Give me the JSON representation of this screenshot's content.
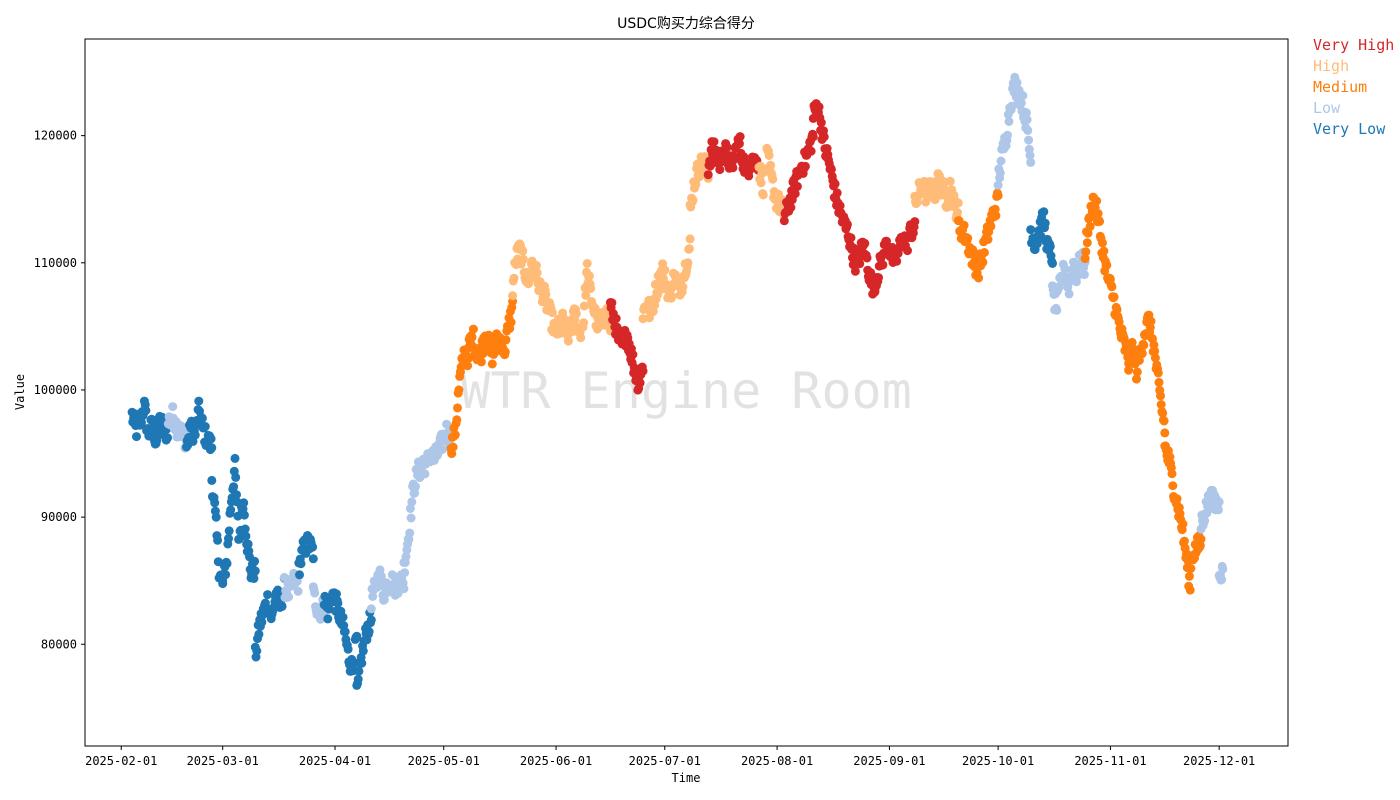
{
  "chart_data": {
    "type": "scatter",
    "title": "USDC购买力综合得分",
    "xlabel": "Time",
    "ylabel": "Value",
    "watermark": "WTR Engine Room",
    "xlim": [
      "2025-01-22",
      "2025-12-20"
    ],
    "ylim": [
      72000,
      127600
    ],
    "x_ticks": [
      "2025-02-01",
      "2025-03-01",
      "2025-04-01",
      "2025-05-01",
      "2025-06-01",
      "2025-07-01",
      "2025-08-01",
      "2025-09-01",
      "2025-10-01",
      "2025-11-01",
      "2025-12-01"
    ],
    "y_ticks": [
      80000,
      90000,
      100000,
      110000,
      120000
    ],
    "y_tick_labels": [
      "80000",
      "90000",
      "100000",
      "110000",
      "120000"
    ],
    "grid": false,
    "legend_position": "outside top-right",
    "categories": [
      {
        "name": "Very High",
        "color": "#d62728"
      },
      {
        "name": "High",
        "color": "#ffbb78"
      },
      {
        "name": "Medium",
        "color": "#ff7f0e"
      },
      {
        "name": "Low",
        "color": "#aec7e8"
      },
      {
        "name": "Very Low",
        "color": "#1f77b4"
      }
    ],
    "segments": [
      {
        "start": "2025-02-04",
        "end": "2025-02-14",
        "category": "Very Low",
        "values": [
          98000,
          96800,
          97500,
          98800,
          96500,
          97200,
          96000,
          97800,
          96400,
          97000
        ]
      },
      {
        "start": "2025-02-14",
        "end": "2025-02-19",
        "category": "Low",
        "values": [
          97500,
          98000,
          97000,
          96600,
          96000
        ]
      },
      {
        "start": "2025-02-19",
        "end": "2025-02-26",
        "category": "Very Low",
        "values": [
          95500,
          97000,
          96500,
          98500,
          96800,
          96000,
          95600
        ]
      },
      {
        "start": "2025-02-26",
        "end": "2025-03-01",
        "category": "Very Low",
        "values": [
          93000,
          90000,
          86000,
          84500
        ]
      },
      {
        "start": "2025-03-01",
        "end": "2025-03-10",
        "category": "Very Low",
        "values": [
          85000,
          86500,
          91000,
          94000,
          88000,
          91500,
          88000,
          85500,
          86000
        ]
      },
      {
        "start": "2025-03-10",
        "end": "2025-03-18",
        "category": "Very Low",
        "values": [
          79000,
          81500,
          82500,
          83500,
          82000,
          84000,
          83000,
          84500
        ]
      },
      {
        "start": "2025-03-18",
        "end": "2025-03-22",
        "category": "Low",
        "values": [
          84500,
          84000,
          85000,
          84800
        ]
      },
      {
        "start": "2025-03-22",
        "end": "2025-03-26",
        "category": "Very Low",
        "values": [
          86000,
          87500,
          88000,
          87200
        ]
      },
      {
        "start": "2025-03-26",
        "end": "2025-03-29",
        "category": "Low",
        "values": [
          84000,
          82500,
          83000
        ]
      },
      {
        "start": "2025-03-29",
        "end": "2025-04-07",
        "category": "Very Low",
        "values": [
          83500,
          82500,
          84000,
          83200,
          82000,
          81000,
          79000,
          78000,
          80500
        ]
      },
      {
        "start": "2025-04-07",
        "end": "2025-04-11",
        "category": "Very Low",
        "values": [
          76000,
          79000,
          81000,
          82000
        ]
      },
      {
        "start": "2025-04-11",
        "end": "2025-04-20",
        "category": "Low",
        "values": [
          83500,
          84500,
          85500,
          84000,
          84800,
          85000,
          84500,
          85000,
          84800
        ]
      },
      {
        "start": "2025-04-20",
        "end": "2025-04-25",
        "category": "Low",
        "values": [
          86000,
          88500,
          92000,
          93500,
          94000
        ]
      },
      {
        "start": "2025-04-25",
        "end": "2025-05-03",
        "category": "Low",
        "values": [
          94500,
          94000,
          95000,
          94600,
          95200,
          96000,
          96800,
          96000
        ]
      },
      {
        "start": "2025-05-03",
        "end": "2025-05-08",
        "category": "Medium",
        "values": [
          95000,
          97000,
          101000,
          103000,
          102500
        ]
      },
      {
        "start": "2025-05-08",
        "end": "2025-05-20",
        "category": "Medium",
        "values": [
          103500,
          104200,
          103000,
          102800,
          104500,
          103500,
          102600,
          103800,
          104000,
          103200,
          105000,
          106500
        ]
      },
      {
        "start": "2025-05-20",
        "end": "2025-06-02",
        "category": "High",
        "values": [
          108000,
          110500,
          111000,
          109500,
          108500,
          110000,
          109200,
          108000,
          107500,
          106500,
          105500,
          104500,
          105000
        ]
      },
      {
        "start": "2025-06-02",
        "end": "2025-06-16",
        "category": "High",
        "values": [
          104800,
          105500,
          104200,
          105000,
          106000,
          104500,
          105200,
          109500,
          107500,
          106000,
          104800,
          105500,
          106000,
          105000
        ]
      },
      {
        "start": "2025-06-16",
        "end": "2025-06-25",
        "category": "Very High",
        "values": [
          106500,
          105500,
          104000,
          103500,
          104500,
          103000,
          101500,
          100500,
          102000
        ]
      },
      {
        "start": "2025-06-25",
        "end": "2025-07-08",
        "category": "High",
        "values": [
          106000,
          107000,
          105800,
          107500,
          108500,
          109500,
          108200,
          107500,
          109000,
          108000,
          108500,
          110000,
          111500
        ]
      },
      {
        "start": "2025-07-08",
        "end": "2025-07-13",
        "category": "High",
        "values": [
          114000,
          116500,
          117500,
          118000,
          117000
        ]
      },
      {
        "start": "2025-07-13",
        "end": "2025-07-27",
        "category": "Very High",
        "values": [
          117500,
          119000,
          118500,
          117800,
          119000,
          118300,
          117500,
          118800,
          119500,
          118000,
          117000,
          118500,
          117800,
          118000
        ]
      },
      {
        "start": "2025-07-27",
        "end": "2025-08-03",
        "category": "High",
        "values": [
          117500,
          116000,
          118500,
          116500,
          115000,
          114500,
          114000
        ]
      },
      {
        "start": "2025-08-03",
        "end": "2025-08-11",
        "category": "Very High",
        "values": [
          113500,
          114500,
          115500,
          116500,
          117500,
          118000,
          119000,
          120000
        ]
      },
      {
        "start": "2025-08-11",
        "end": "2025-08-28",
        "category": "Very High",
        "values": [
          121500,
          122500,
          121000,
          119000,
          118000,
          116500,
          115000,
          114000,
          113000,
          112500,
          111000,
          110000,
          110500,
          111500,
          110000,
          108500,
          108000
        ]
      },
      {
        "start": "2025-08-28",
        "end": "2025-09-08",
        "category": "Very High",
        "values": [
          108500,
          109500,
          110500,
          111500,
          110800,
          110000,
          111000,
          112000,
          111500,
          112500,
          113000
        ]
      },
      {
        "start": "2025-09-08",
        "end": "2025-09-20",
        "category": "High",
        "values": [
          114500,
          115500,
          116200,
          115200,
          116000,
          115500,
          116500,
          115800,
          115000,
          116000,
          114500,
          114000
        ]
      },
      {
        "start": "2025-09-20",
        "end": "2025-10-01",
        "category": "Medium",
        "values": [
          113000,
          112500,
          112000,
          111000,
          110000,
          109500,
          110500,
          111800,
          113000,
          114000,
          115000
        ]
      },
      {
        "start": "2025-10-01",
        "end": "2025-10-10",
        "category": "Low",
        "values": [
          116500,
          118500,
          120000,
          122500,
          124000,
          123500,
          122500,
          121000,
          118000
        ]
      },
      {
        "start": "2025-10-10",
        "end": "2025-10-16",
        "category": "Very Low",
        "values": [
          112500,
          111500,
          112500,
          113500,
          111000,
          110500
        ]
      },
      {
        "start": "2025-10-16",
        "end": "2025-10-25",
        "category": "Low",
        "values": [
          107500,
          106500,
          108500,
          109500,
          108000,
          110000,
          109000,
          110500,
          109500
        ]
      },
      {
        "start": "2025-10-25",
        "end": "2025-11-06",
        "category": "Medium",
        "values": [
          111000,
          113000,
          115000,
          114000,
          112000,
          110000,
          108500,
          107500,
          106000,
          104500,
          103500,
          102500
        ]
      },
      {
        "start": "2025-11-06",
        "end": "2025-11-16",
        "category": "Medium",
        "values": [
          102000,
          103500,
          101500,
          103000,
          104500,
          105500,
          104000,
          101500,
          99000,
          97000
        ]
      },
      {
        "start": "2025-11-16",
        "end": "2025-11-23",
        "category": "Medium",
        "values": [
          95500,
          94500,
          92500,
          91000,
          89500,
          87000,
          84500
        ]
      },
      {
        "start": "2025-11-23",
        "end": "2025-11-26",
        "category": "Medium",
        "values": [
          86500,
          87500,
          88000
        ]
      },
      {
        "start": "2025-11-26",
        "end": "2025-12-01",
        "category": "Low",
        "values": [
          89500,
          90500,
          91500,
          91200,
          90800
        ]
      },
      {
        "start": "2025-12-01",
        "end": "2025-12-02",
        "category": "Low",
        "values": [
          86000,
          85500
        ]
      }
    ]
  }
}
